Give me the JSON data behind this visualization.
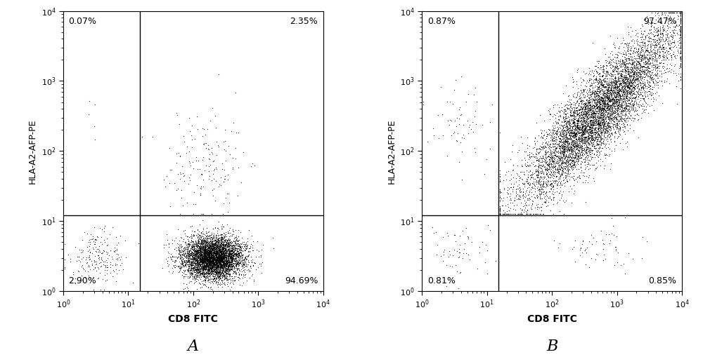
{
  "panel_A": {
    "quadrant_labels": {
      "UL": "0.07%",
      "UR": "2.35%",
      "LL": "2.90%",
      "LR": "94.69%"
    },
    "gate_x": 15.0,
    "gate_y": 12.0
  },
  "panel_B": {
    "quadrant_labels": {
      "UL": "0.87%",
      "UR": "97.47%",
      "LL": "0.81%",
      "LR": "0.85%"
    },
    "gate_x": 15.0,
    "gate_y": 12.0
  },
  "axis_label_x": "CD8 FITC",
  "axis_label_y": "HLA-A2-AFP-PE",
  "xlim": [
    1,
    10000
  ],
  "ylim": [
    1,
    10000
  ],
  "label_color": "#000000",
  "dot_color": "#000000",
  "dot_size": 0.8,
  "dot_alpha": 0.85,
  "background_color": "#ffffff",
  "panel_labels": [
    "A",
    "B"
  ],
  "percent_label_color": "#000000",
  "percent_fontsize": 9
}
